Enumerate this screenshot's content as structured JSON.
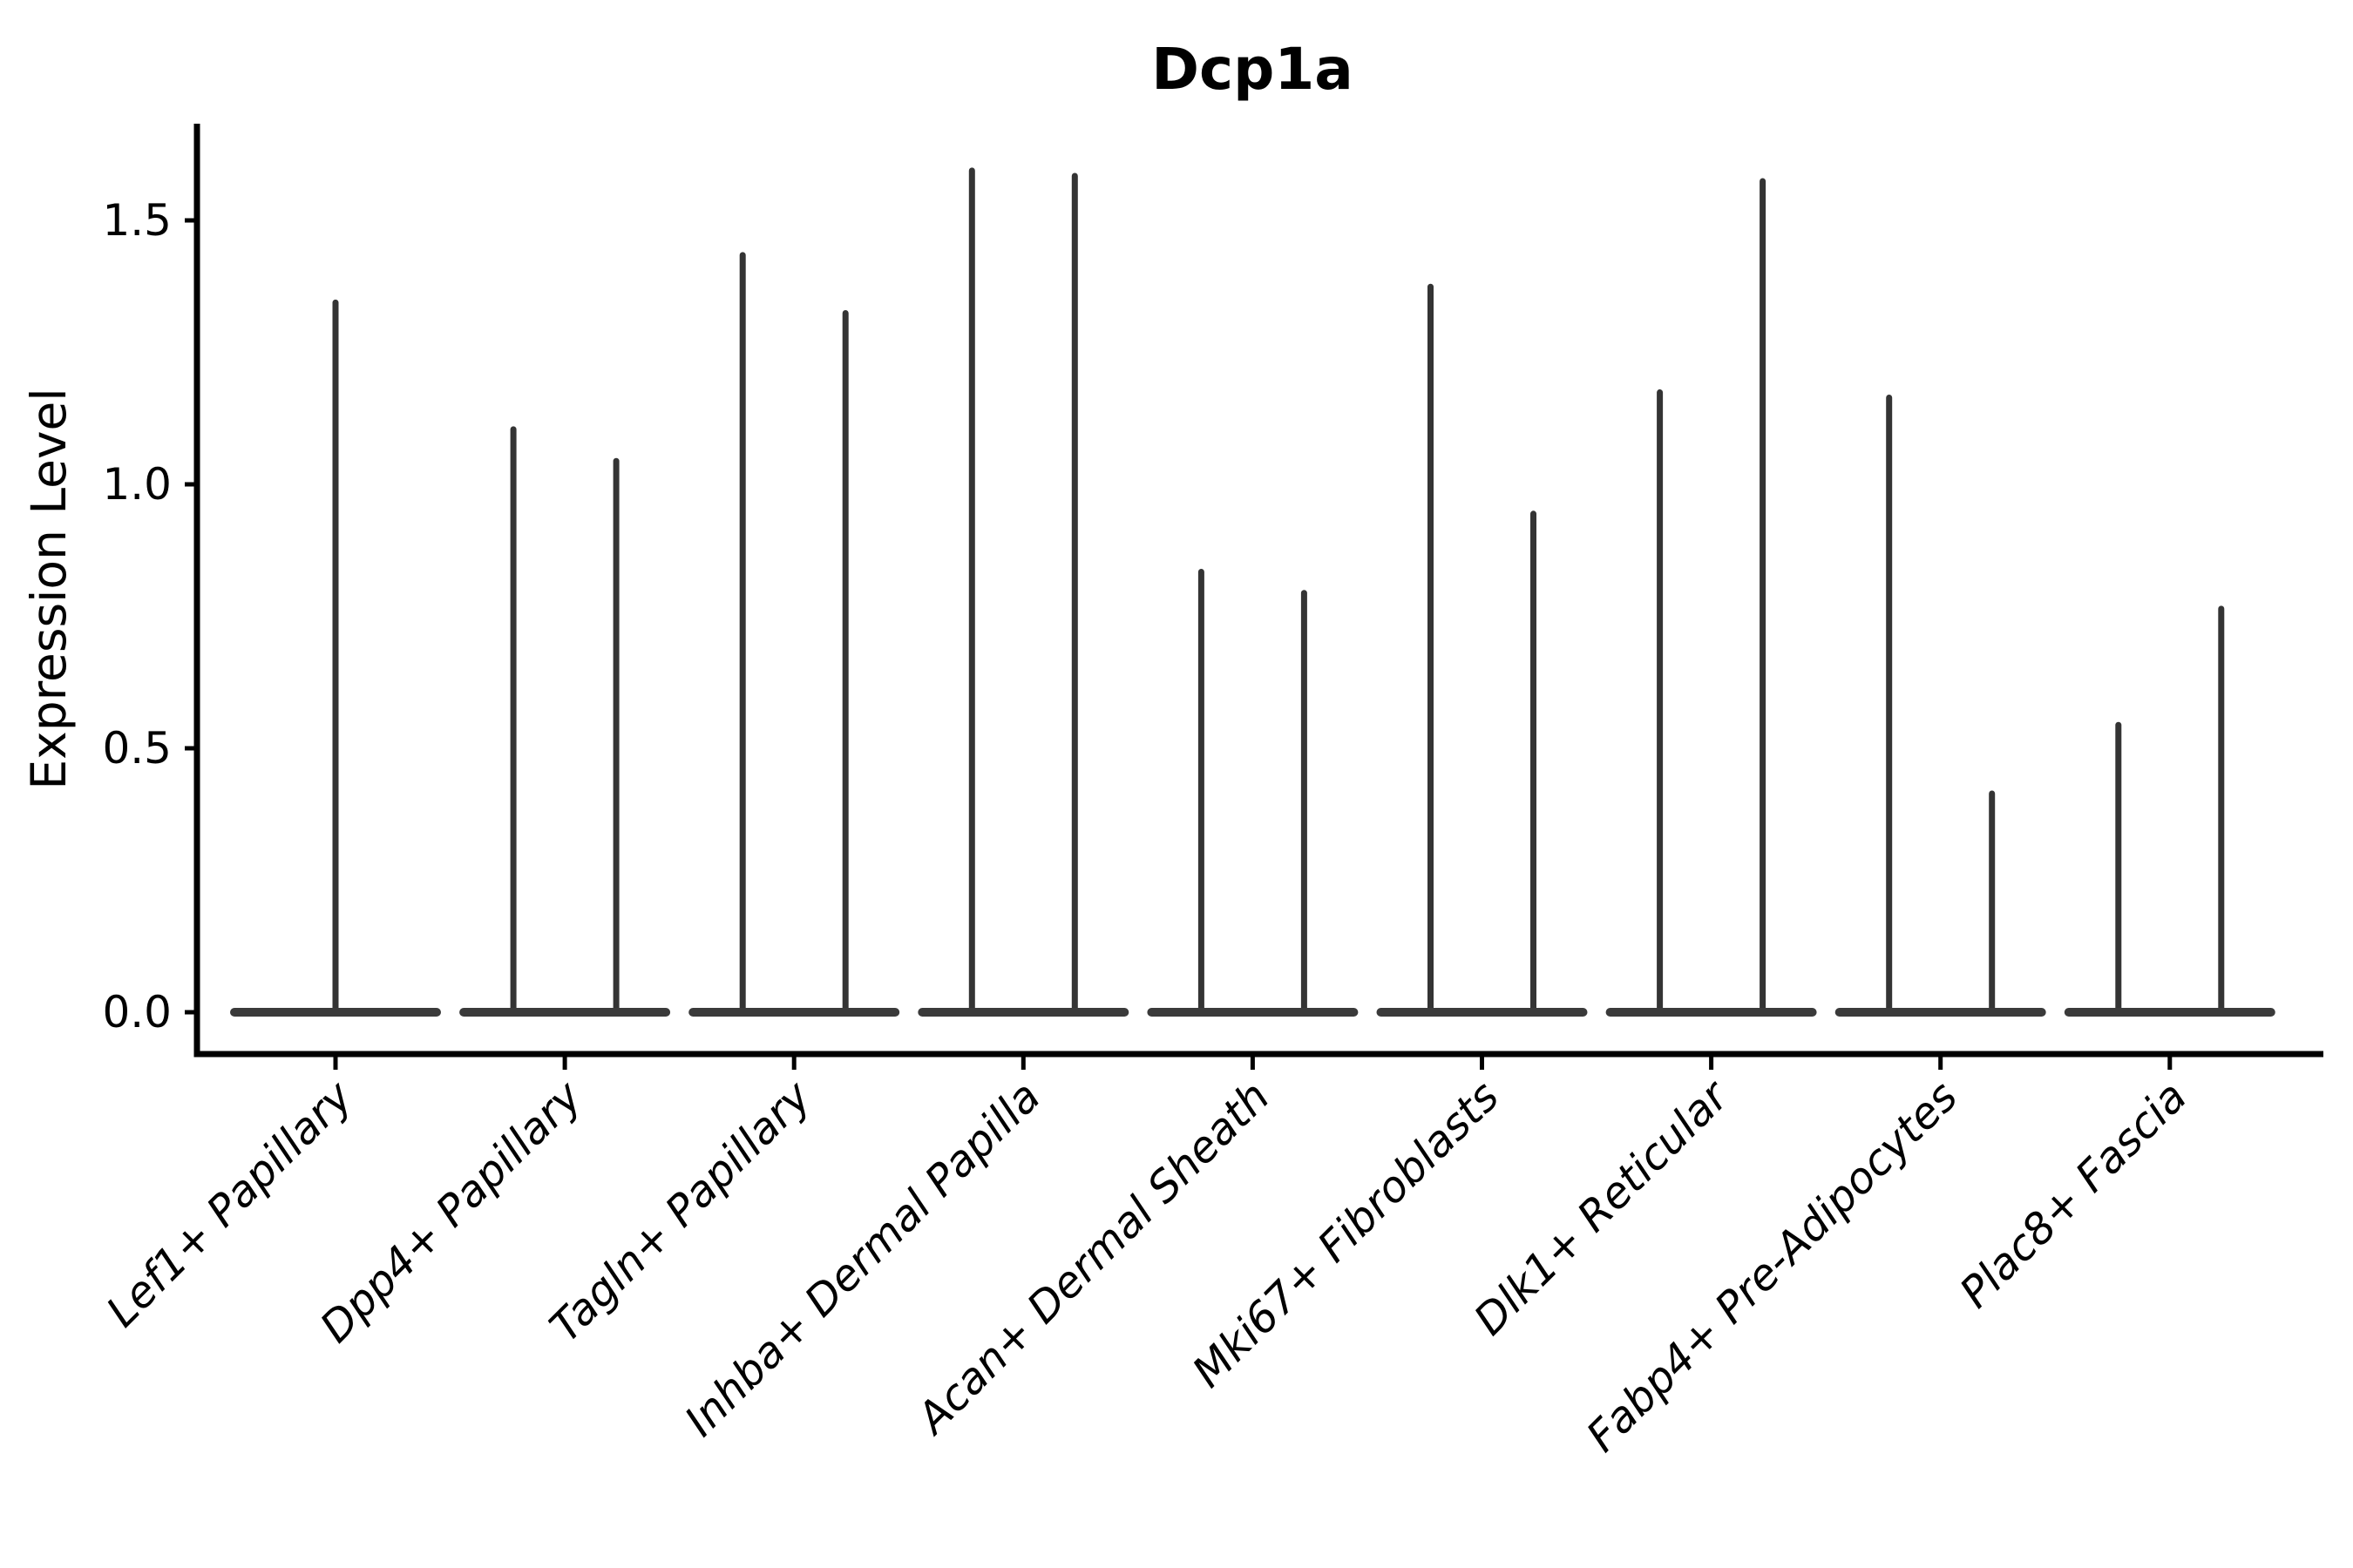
{
  "chart_data": {
    "type": "violin",
    "title": "Dcp1a",
    "ylabel": "Expression Level",
    "xlabel": "",
    "yticks": [
      0.0,
      0.5,
      1.0,
      1.5
    ],
    "ytick_labels": [
      "0.0",
      "0.5",
      "1.0",
      "1.5"
    ],
    "ylim": [
      -0.08,
      1.68
    ],
    "grid": false,
    "legend": "none",
    "categories": [
      "Lef1+ Papillary",
      "Dpp4+ Papillary",
      "Tagln+ Papillary",
      "Inhba+ Dermal Papilla",
      "Acan+ Dermal Sheath",
      "Mki67+ Fibroblasts",
      "Dlk1+ Reticular",
      "Fabp4+ Pre-Adipocytes",
      "Plac8+ Fascia"
    ],
    "series": [
      {
        "category": "Lef1+ Papillary",
        "spike_maxima": [
          1.35
        ]
      },
      {
        "category": "Dpp4+ Papillary",
        "spike_maxima": [
          1.11,
          1.05
        ]
      },
      {
        "category": "Tagln+ Papillary",
        "spike_maxima": [
          1.44,
          1.33
        ]
      },
      {
        "category": "Inhba+ Dermal Papilla",
        "spike_maxima": [
          1.6,
          1.59
        ]
      },
      {
        "category": "Acan+ Dermal Sheath",
        "spike_maxima": [
          0.84,
          0.8
        ]
      },
      {
        "category": "Mki67+ Fibroblasts",
        "spike_maxima": [
          1.38,
          0.95
        ]
      },
      {
        "category": "Dlk1+ Reticular",
        "spike_maxima": [
          1.18,
          1.58
        ]
      },
      {
        "category": "Fabp4+ Pre-Adipocytes",
        "spike_maxima": [
          1.17,
          0.42
        ]
      },
      {
        "category": "Plac8+ Fascia",
        "spike_maxima": [
          0.55,
          0.77
        ]
      }
    ],
    "baseline_mass_at_zero": true,
    "colors": {
      "violin_fill": "#3a3a3a",
      "spike": "#343434",
      "axis": "#000000",
      "text": "#000000",
      "background": "#ffffff"
    }
  }
}
